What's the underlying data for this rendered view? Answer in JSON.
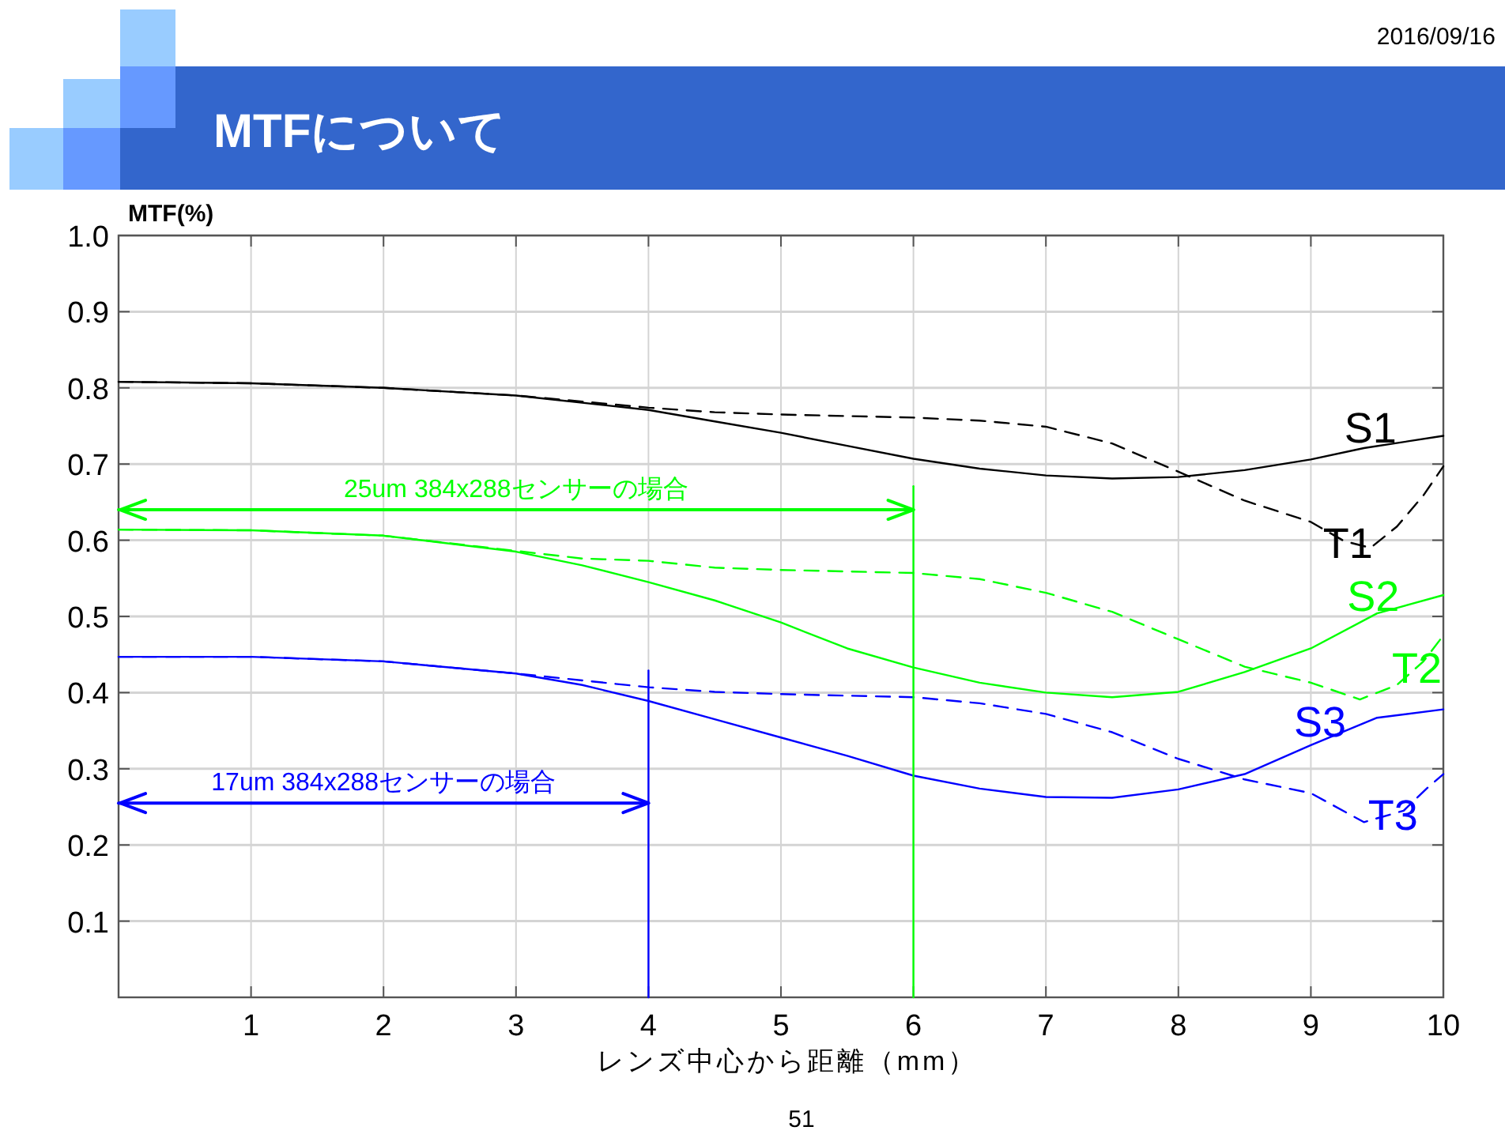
{
  "chart_data": {
    "type": "line",
    "title": "MTFについて",
    "xlabel": "レンズ中心から距離（mm）",
    "ylabel": "MTF(%)",
    "xlim": [
      0,
      10
    ],
    "ylim": [
      0,
      1
    ],
    "xticks": [
      1,
      2,
      3,
      4,
      5,
      6,
      7,
      8,
      9,
      10
    ],
    "yticks": [
      0.1,
      0.2,
      0.3,
      0.4,
      0.5,
      0.6,
      0.7,
      0.8,
      0.9,
      {
        "value": 1,
        "label": "1.0"
      }
    ],
    "grid": true,
    "series": [
      {
        "name": "S1",
        "color": "#000000",
        "line_style": "solid",
        "x": [
          0,
          1,
          2,
          3,
          4,
          4.5,
          5,
          5.5,
          6,
          6.5,
          7,
          7.5,
          8,
          8.5,
          9,
          9.4,
          10
        ],
        "values": [
          0.808,
          0.806,
          0.8,
          0.79,
          0.771,
          0.756,
          0.741,
          0.724,
          0.707,
          0.694,
          0.685,
          0.681,
          0.683,
          0.692,
          0.706,
          0.721,
          0.737
        ]
      },
      {
        "name": "T1",
        "color": "#000000",
        "line_style": "dashed",
        "x": [
          0,
          1,
          2,
          3,
          3.5,
          4,
          4.5,
          5,
          5.5,
          6,
          6.5,
          7,
          7.5,
          8,
          8.5,
          9,
          9.25,
          9.45,
          9.65,
          9.85,
          10
        ],
        "values": [
          0.808,
          0.806,
          0.8,
          0.79,
          0.782,
          0.774,
          0.768,
          0.765,
          0.763,
          0.761,
          0.757,
          0.749,
          0.727,
          0.69,
          0.652,
          0.624,
          0.599,
          0.59,
          0.618,
          0.659,
          0.697
        ]
      },
      {
        "name": "S2",
        "color": "#00ff00",
        "line_style": "solid",
        "x": [
          0,
          1,
          2,
          3,
          3.5,
          4,
          4.5,
          5,
          5.5,
          6,
          6.5,
          7,
          7.5,
          8,
          8.5,
          9,
          9.5,
          10
        ],
        "values": [
          0.614,
          0.613,
          0.606,
          0.585,
          0.567,
          0.545,
          0.521,
          0.492,
          0.458,
          0.433,
          0.413,
          0.4,
          0.394,
          0.401,
          0.427,
          0.458,
          0.504,
          0.528
        ]
      },
      {
        "name": "T2",
        "color": "#00ff00",
        "line_style": "dashed",
        "x": [
          0,
          1,
          2,
          3,
          3.5,
          4,
          4.5,
          5,
          5.5,
          6,
          6.5,
          7,
          7.5,
          8,
          8.5,
          9,
          9.37,
          9.65,
          9.85,
          10
        ],
        "values": [
          0.614,
          0.613,
          0.606,
          0.586,
          0.576,
          0.573,
          0.564,
          0.561,
          0.559,
          0.557,
          0.549,
          0.531,
          0.506,
          0.47,
          0.434,
          0.413,
          0.391,
          0.41,
          0.441,
          0.475
        ]
      },
      {
        "name": "S3",
        "color": "#0000ff",
        "line_style": "solid",
        "x": [
          0,
          1,
          2,
          3,
          3.5,
          4,
          4.5,
          5,
          5.5,
          6,
          6.5,
          7,
          7.5,
          8,
          8.5,
          9,
          9.5,
          10
        ],
        "values": [
          0.447,
          0.447,
          0.441,
          0.425,
          0.41,
          0.389,
          0.365,
          0.341,
          0.317,
          0.291,
          0.274,
          0.263,
          0.262,
          0.273,
          0.293,
          0.331,
          0.367,
          0.378
        ]
      },
      {
        "name": "T3",
        "color": "#0000ff",
        "line_style": "dashed",
        "x": [
          0,
          1,
          2,
          3,
          3.5,
          4,
          4.5,
          5,
          5.5,
          6,
          6.5,
          7,
          7.5,
          8,
          8.5,
          9,
          9.4,
          9.7,
          9.88,
          10
        ],
        "values": [
          0.447,
          0.447,
          0.441,
          0.425,
          0.416,
          0.407,
          0.401,
          0.398,
          0.396,
          0.394,
          0.386,
          0.372,
          0.348,
          0.313,
          0.286,
          0.268,
          0.23,
          0.245,
          0.275,
          0.293
        ]
      },
      {
        "color": "#00ff00",
        "line_style": "solid",
        "x": [
          6,
          6
        ],
        "values": [
          0,
          0.671
        ]
      },
      {
        "color": "#0000ff",
        "line_style": "solid",
        "x": [
          4,
          4
        ],
        "values": [
          0,
          0.429
        ]
      },
      {
        "color": "#00ff00",
        "line_style": "solid",
        "x": [
          0,
          6
        ],
        "values": [
          0.64,
          0.64
        ]
      },
      {
        "color": "#0000ff",
        "line_style": "solid",
        "x": [
          0,
          4
        ],
        "values": [
          0.255,
          0.255
        ]
      }
    ],
    "annotations": [
      "25um 384x288センサーの場合",
      "17um 384x288センサーの場合",
      "2016/09/16",
      "51"
    ]
  }
}
